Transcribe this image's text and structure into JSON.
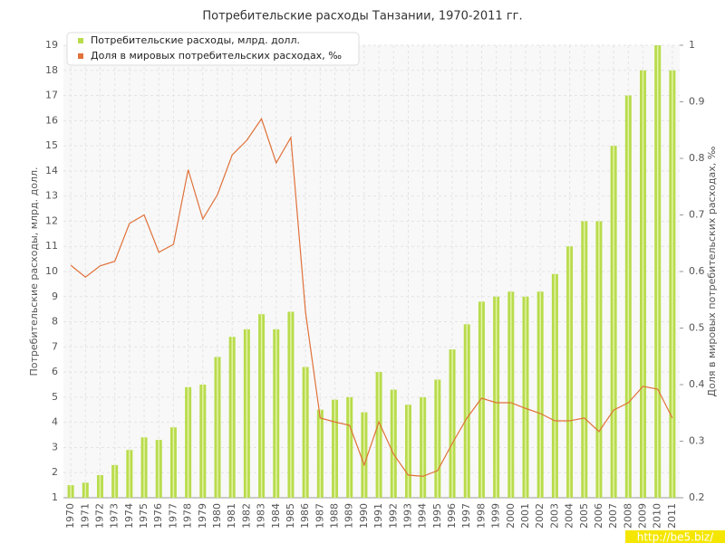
{
  "chart_data": {
    "type": "bar_line",
    "title": "Потребительские расходы Танзании, 1970-2011 гг.",
    "y_label": "Потребительские расходы, млрд. долл.",
    "y2_label": "Доля в мировых потребительских расходах, ‰",
    "watermark": "http://be5.biz/",
    "categories": [
      "1970",
      "1971",
      "1972",
      "1973",
      "1974",
      "1975",
      "1976",
      "1977",
      "1978",
      "1979",
      "1980",
      "1981",
      "1982",
      "1983",
      "1984",
      "1985",
      "1986",
      "1987",
      "1988",
      "1989",
      "1990",
      "1991",
      "1992",
      "1993",
      "1994",
      "1995",
      "1996",
      "1997",
      "1998",
      "1999",
      "2000",
      "2001",
      "2002",
      "2003",
      "2004",
      "2005",
      "2006",
      "2007",
      "2008",
      "2009",
      "2010",
      "2011"
    ],
    "series": [
      {
        "name": "Потребительские расходы, млрд. долл.",
        "type": "bar",
        "color": "#b8dc4c",
        "values": [
          1.5,
          1.6,
          1.9,
          2.3,
          2.9,
          3.4,
          3.3,
          3.8,
          5.4,
          5.5,
          6.6,
          7.4,
          7.7,
          8.3,
          7.7,
          8.4,
          6.2,
          4.5,
          4.9,
          5.0,
          4.4,
          6.0,
          5.3,
          4.7,
          5.0,
          5.7,
          6.9,
          7.9,
          8.8,
          9.0,
          9.2,
          9.0,
          9.2,
          9.9,
          11.0,
          12.0,
          12.0,
          15.0,
          17.0,
          18.0,
          19.0,
          18.0
        ]
      },
      {
        "name": "Доля в мировых потребительских расходах, ‰",
        "type": "line",
        "axis": "y2",
        "color": "#e0713a",
        "values": [
          0.611,
          0.59,
          0.61,
          0.618,
          0.685,
          0.7,
          0.634,
          0.648,
          0.78,
          0.693,
          0.736,
          0.806,
          0.832,
          0.87,
          0.792,
          0.837,
          0.528,
          0.341,
          0.334,
          0.328,
          0.258,
          0.334,
          0.277,
          0.24,
          0.238,
          0.248,
          0.296,
          0.341,
          0.376,
          0.368,
          0.368,
          0.358,
          0.349,
          0.336,
          0.336,
          0.341,
          0.317,
          0.355,
          0.368,
          0.397,
          0.392,
          0.341
        ]
      }
    ],
    "ylim": [
      1,
      19
    ],
    "yticks": [
      1,
      2,
      3,
      4,
      5,
      6,
      7,
      8,
      9,
      10,
      11,
      12,
      13,
      14,
      15,
      16,
      17,
      18,
      19
    ],
    "y2lim": [
      0.2,
      1
    ],
    "y2ticks": [
      0.2,
      0.3,
      0.4,
      0.5,
      0.6,
      0.7,
      0.8,
      0.9,
      1
    ],
    "grid": true,
    "legend": "top-left"
  }
}
